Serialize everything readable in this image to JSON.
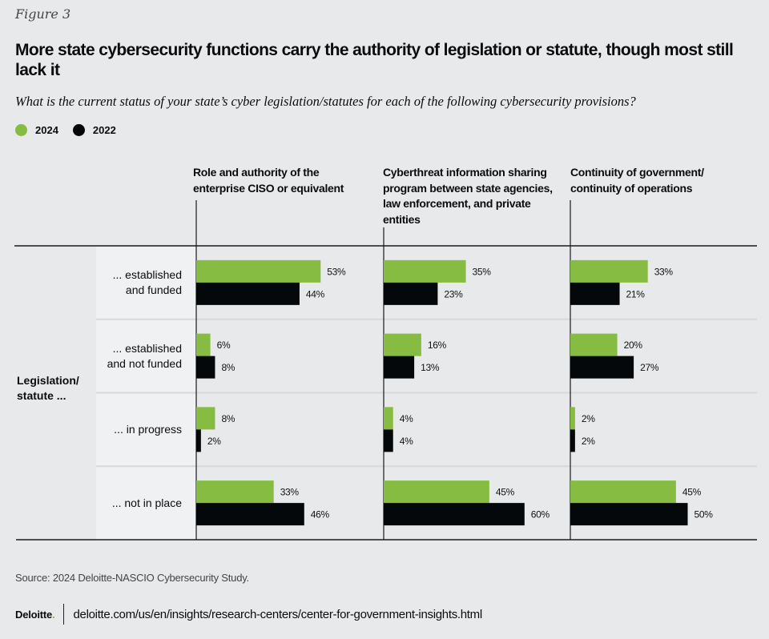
{
  "figure_label": "Figure 3",
  "title": "More state cybersecurity functions carry the authority of legislation or statute, though most still lack it",
  "subtitle": "What is the current status of your state’s cyber legislation/statutes for each of the following cybersecurity provisions?",
  "colors": {
    "2024": "#86bc41",
    "2022": "#05080a",
    "background": "#e8e9eb",
    "row_label_bg": "#f0f1f3"
  },
  "legend": [
    {
      "label": "2024",
      "color": "#86bc41"
    },
    {
      "label": "2022",
      "color": "#05080a"
    }
  ],
  "chart_data": {
    "type": "bar",
    "orientation": "horizontal",
    "title": "More state cybersecurity functions carry the authority of legislation or statute, though most still lack it",
    "group_label": "Legislation/ statute ...",
    "categories": [
      "... established and funded",
      "... established and not funded",
      "... in progress",
      "... not in place"
    ],
    "panels": [
      {
        "title": "Role and authority of the enterprise CISO or equivalent",
        "series": [
          {
            "name": "2024",
            "values": [
              53,
              6,
              8,
              33
            ]
          },
          {
            "name": "2022",
            "values": [
              44,
              8,
              2,
              46
            ]
          }
        ]
      },
      {
        "title": "Cyberthreat information sharing program between state agencies, law enforcement, and private entities",
        "series": [
          {
            "name": "2024",
            "values": [
              35,
              16,
              4,
              45
            ]
          },
          {
            "name": "2022",
            "values": [
              23,
              13,
              4,
              60
            ]
          }
        ]
      },
      {
        "title": "Continuity of government/ continuity of operations",
        "series": [
          {
            "name": "2024",
            "values": [
              33,
              20,
              2,
              45
            ]
          },
          {
            "name": "2022",
            "values": [
              21,
              27,
              2,
              50
            ]
          }
        ]
      }
    ],
    "value_format": "percent",
    "xlim": [
      0,
      100
    ],
    "legend_position": "top-left",
    "grid": false
  },
  "source": "Source: 2024 Deloitte-NASCIO Cybersecurity Study.",
  "footer": {
    "logo": "Deloitte",
    "logo_dot": ".",
    "url": "deloitte.com/us/en/insights/research-centers/center-for-government-insights.html"
  }
}
